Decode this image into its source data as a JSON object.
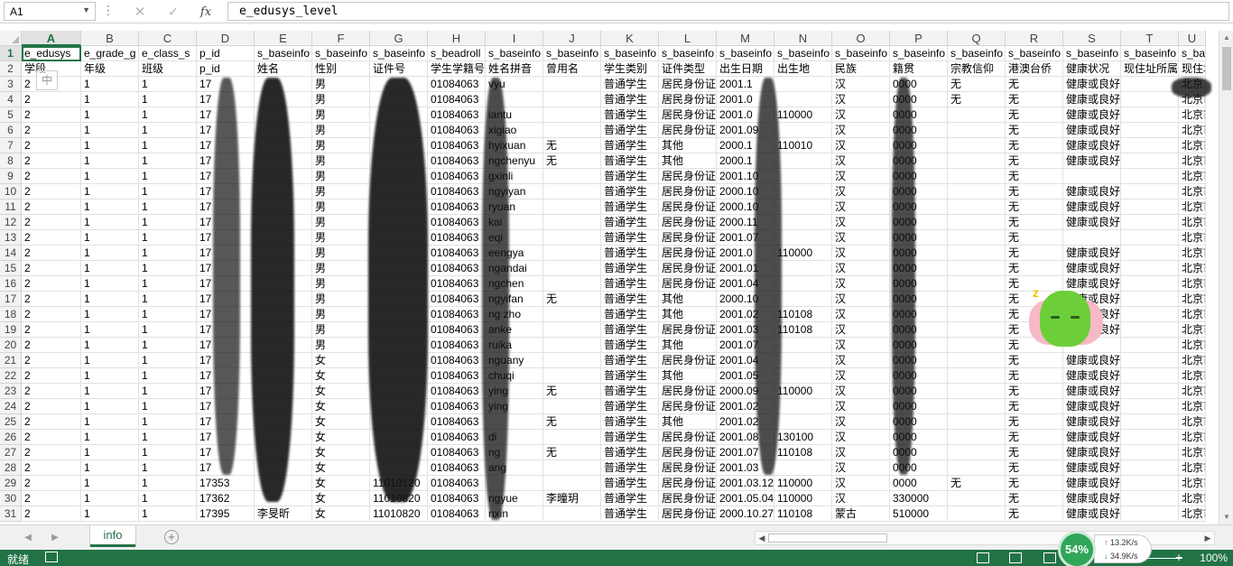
{
  "formula_bar": {
    "name_box": "A1",
    "cancel_glyph": "✕",
    "enter_glyph": "✓",
    "fx_label": "fx",
    "content": "e_edusys_level"
  },
  "columns": [
    "A",
    "B",
    "C",
    "D",
    "E",
    "F",
    "G",
    "H",
    "I",
    "J",
    "K",
    "L",
    "M",
    "N",
    "O",
    "P",
    "Q",
    "R",
    "S",
    "T",
    "U"
  ],
  "rows": [
    {
      "n": "1",
      "cells": [
        "e_edusys",
        "e_grade_g",
        "e_class_s",
        "p_id",
        "s_baseinfo",
        "s_baseinfo",
        "s_baseinfo",
        "s_beadroll",
        "s_baseinfo",
        "s_baseinfo",
        "s_baseinfo",
        "s_baseinfo",
        "s_baseinfo",
        "s_baseinfo",
        "s_baseinfo",
        "s_baseinfo",
        "s_baseinfo",
        "s_baseinfo",
        "s_baseinfo",
        "s_baseinfo",
        "s_bas"
      ]
    },
    {
      "n": "2",
      "cells": [
        "学段",
        "年级",
        "班级",
        "p_id",
        "姓名",
        "性别",
        "证件号",
        "学生学籍号",
        "姓名拼音",
        "曾用名",
        "学生类别",
        "证件类型",
        "出生日期",
        "出生地",
        "民族",
        "籍贯",
        "宗教信仰",
        "港澳台侨",
        "健康状况",
        "现住址所属",
        "现住址"
      ]
    },
    {
      "n": "3",
      "cells": [
        "2",
        "1",
        "1",
        "17",
        "",
        "男",
        "",
        "01084063",
        "vyu",
        "",
        "普通学生",
        "居民身份证",
        "2001.1",
        "",
        "汉",
        "0000",
        "无",
        "无",
        "健康或良好",
        "",
        "北京市"
      ]
    },
    {
      "n": "4",
      "cells": [
        "2",
        "1",
        "1",
        "17",
        "",
        "男",
        "",
        "01084063",
        "",
        "",
        "普通学生",
        "居民身份证",
        "2001.0",
        "",
        "汉",
        "0000",
        "无",
        "无",
        "健康或良好",
        "",
        "北京市"
      ]
    },
    {
      "n": "5",
      "cells": [
        "2",
        "1",
        "1",
        "17",
        "",
        "男",
        "",
        "01084063",
        "iantu",
        "",
        "普通学生",
        "居民身份证",
        "2001.0",
        "110000",
        "汉",
        "0000",
        "",
        "无",
        "健康或良好",
        "",
        "北京市"
      ]
    },
    {
      "n": "6",
      "cells": [
        "2",
        "1",
        "1",
        "17",
        "",
        "男",
        "",
        "01084063",
        "xigiao",
        "",
        "普通学生",
        "居民身份证",
        "2001.09",
        "",
        "汉",
        "0000",
        "",
        "无",
        "健康或良好",
        "",
        "北京市"
      ]
    },
    {
      "n": "7",
      "cells": [
        "2",
        "1",
        "1",
        "17",
        "",
        "男",
        "",
        "01084063",
        "hyixuan",
        "无",
        "普通学生",
        "其他",
        "2000.1",
        "110010",
        "汉",
        "0000",
        "",
        "无",
        "健康或良好",
        "",
        "北京市"
      ]
    },
    {
      "n": "8",
      "cells": [
        "2",
        "1",
        "1",
        "17",
        "",
        "男",
        "",
        "01084063",
        "ngchenyu",
        "无",
        "普通学生",
        "其他",
        "2000.1",
        "",
        "汉",
        "0000",
        "",
        "无",
        "健康或良好",
        "",
        "北京市"
      ]
    },
    {
      "n": "9",
      "cells": [
        "2",
        "1",
        "1",
        "17",
        "",
        "男",
        "",
        "01084063",
        "gxinli",
        "",
        "普通学生",
        "居民身份证",
        "2001.10",
        "",
        "汉",
        "0000",
        "",
        "无",
        "",
        "",
        "北京市"
      ]
    },
    {
      "n": "10",
      "cells": [
        "2",
        "1",
        "1",
        "17",
        "",
        "男",
        "",
        "01084063",
        "ngyiyan",
        "",
        "普通学生",
        "居民身份证",
        "2000.10",
        "",
        "汉",
        "0000",
        "",
        "无",
        "健康或良好",
        "",
        "北京市"
      ]
    },
    {
      "n": "11",
      "cells": [
        "2",
        "1",
        "1",
        "17",
        "",
        "男",
        "",
        "01084063",
        "ryuan",
        "",
        "普通学生",
        "居民身份证",
        "2000.10",
        "",
        "汉",
        "0000",
        "",
        "无",
        "健康或良好",
        "",
        "北京市"
      ]
    },
    {
      "n": "12",
      "cells": [
        "2",
        "1",
        "1",
        "17",
        "",
        "男",
        "",
        "01084063",
        "kai",
        "",
        "普通学生",
        "居民身份证",
        "2000.11",
        "",
        "汉",
        "0000",
        "",
        "无",
        "健康或良好",
        "",
        "北京市"
      ]
    },
    {
      "n": "13",
      "cells": [
        "2",
        "1",
        "1",
        "17",
        "",
        "男",
        "",
        "01084063",
        "eqi",
        "",
        "普通学生",
        "居民身份证",
        "2001.07",
        "",
        "汉",
        "0000",
        "",
        "无",
        "",
        "",
        "北京市"
      ]
    },
    {
      "n": "14",
      "cells": [
        "2",
        "1",
        "1",
        "17",
        "",
        "男",
        "",
        "01084063",
        "eengya",
        "",
        "普通学生",
        "居民身份证",
        "2001.0",
        "110000",
        "汉",
        "0000",
        "",
        "无",
        "健康或良好",
        "",
        "北京市"
      ]
    },
    {
      "n": "15",
      "cells": [
        "2",
        "1",
        "1",
        "17",
        "",
        "男",
        "",
        "01084063",
        "ngandai",
        "",
        "普通学生",
        "居民身份证",
        "2001.01",
        "",
        "汉",
        "0000",
        "",
        "无",
        "健康或良好",
        "",
        "北京市"
      ]
    },
    {
      "n": "16",
      "cells": [
        "2",
        "1",
        "1",
        "17",
        "",
        "男",
        "",
        "01084063",
        "ngchen",
        "",
        "普通学生",
        "居民身份证",
        "2001.04",
        "",
        "汉",
        "0000",
        "",
        "无",
        "健康或良好",
        "",
        "北京市"
      ]
    },
    {
      "n": "17",
      "cells": [
        "2",
        "1",
        "1",
        "17",
        "",
        "男",
        "",
        "01084063",
        "ngyifan",
        "无",
        "普通学生",
        "其他",
        "2000.10",
        "",
        "汉",
        "0000",
        "",
        "无",
        "健康或良好",
        "",
        "北京市"
      ]
    },
    {
      "n": "18",
      "cells": [
        "2",
        "1",
        "1",
        "17",
        "",
        "男",
        "",
        "01084063",
        "ng zho",
        "",
        "普通学生",
        "其他",
        "2001.02",
        "110108",
        "汉",
        "0000",
        "",
        "无",
        "健康或良好",
        "",
        "北京市"
      ]
    },
    {
      "n": "19",
      "cells": [
        "2",
        "1",
        "1",
        "17",
        "",
        "男",
        "",
        "01084063",
        "anke",
        "",
        "普通学生",
        "居民身份证",
        "2001.03",
        "110108",
        "汉",
        "0000",
        "",
        "无",
        "健康或良好",
        "",
        "北京市"
      ]
    },
    {
      "n": "20",
      "cells": [
        "2",
        "1",
        "1",
        "17",
        "",
        "男",
        "",
        "01084063",
        "ruika",
        "",
        "普通学生",
        "其他",
        "2001.07",
        "",
        "汉",
        "0000",
        "",
        "无",
        "",
        "",
        "北京市"
      ]
    },
    {
      "n": "21",
      "cells": [
        "2",
        "1",
        "1",
        "17",
        "",
        "女",
        "",
        "01084063",
        "nguany",
        "",
        "普通学生",
        "居民身份证",
        "2001.04",
        "",
        "汉",
        "0000",
        "",
        "无",
        "健康或良好",
        "",
        "北京市"
      ]
    },
    {
      "n": "22",
      "cells": [
        "2",
        "1",
        "1",
        "17",
        "",
        "女",
        "",
        "01084063",
        "chuqi",
        "",
        "普通学生",
        "其他",
        "2001.05",
        "",
        "汉",
        "0000",
        "",
        "无",
        "健康或良好",
        "",
        "北京市"
      ]
    },
    {
      "n": "23",
      "cells": [
        "2",
        "1",
        "1",
        "17",
        "",
        "女",
        "",
        "01084063",
        "ying",
        "无",
        "普通学生",
        "居民身份证",
        "2000.09",
        "110000",
        "汉",
        "0000",
        "",
        "无",
        "健康或良好",
        "",
        "北京市"
      ]
    },
    {
      "n": "24",
      "cells": [
        "2",
        "1",
        "1",
        "17",
        "",
        "女",
        "",
        "01084063",
        "ying",
        "",
        "普通学生",
        "居民身份证",
        "2001.02",
        "",
        "汉",
        "0000",
        "",
        "无",
        "健康或良好",
        "",
        "北京市"
      ]
    },
    {
      "n": "25",
      "cells": [
        "2",
        "1",
        "1",
        "17",
        "",
        "女",
        "",
        "01084063",
        "",
        "无",
        "普通学生",
        "其他",
        "2001.02",
        "",
        "汉",
        "0000",
        "",
        "无",
        "健康或良好",
        "",
        "北京市"
      ]
    },
    {
      "n": "26",
      "cells": [
        "2",
        "1",
        "1",
        "17",
        "",
        "女",
        "",
        "01084063",
        "di",
        "",
        "普通学生",
        "居民身份证",
        "2001.08",
        "130100",
        "汉",
        "0000",
        "",
        "无",
        "健康或良好",
        "",
        "北京市"
      ]
    },
    {
      "n": "27",
      "cells": [
        "2",
        "1",
        "1",
        "17",
        "",
        "女",
        "",
        "01084063",
        "ng",
        "无",
        "普通学生",
        "居民身份证",
        "2001.07",
        "110108",
        "汉",
        "0000",
        "",
        "无",
        "健康或良好",
        "",
        "北京市"
      ]
    },
    {
      "n": "28",
      "cells": [
        "2",
        "1",
        "1",
        "17",
        "",
        "女",
        "",
        "01084063",
        "ang",
        "",
        "普通学生",
        "居民身份证",
        "2001.03",
        "",
        "汉",
        "0000",
        "",
        "无",
        "健康或良好",
        "",
        "北京市"
      ]
    },
    {
      "n": "29",
      "cells": [
        "2",
        "1",
        "1",
        "17353",
        "",
        "女",
        "11010120",
        "01084063",
        "",
        "",
        "普通学生",
        "居民身份证",
        "2001.03.12",
        "110000",
        "汉",
        "0000",
        "无",
        "无",
        "健康或良好",
        "",
        "北京市"
      ]
    },
    {
      "n": "30",
      "cells": [
        "2",
        "1",
        "1",
        "17362",
        "",
        "女",
        "11010820",
        "01084063",
        "ngyue",
        "李曈玥",
        "普通学生",
        "居民身份证",
        "2001.05.04",
        "110000",
        "汉",
        "330000",
        "",
        "无",
        "健康或良好",
        "",
        "北京市"
      ]
    },
    {
      "n": "31",
      "cells": [
        "2",
        "1",
        "1",
        "17395",
        "李旻昕",
        "女",
        "11010820",
        "01084063",
        "nxin",
        "",
        "普通学生",
        "居民身份证",
        "2000.10.27",
        "110108",
        "蒙古",
        "510000",
        "",
        "无",
        "健康或良好",
        "",
        "北京市"
      ]
    }
  ],
  "sheet_tabs": {
    "active": "info",
    "add_glyph": "+"
  },
  "status_bar": {
    "ready": "就绪",
    "zoom": "100%",
    "plus_glyph": "+"
  },
  "net_widget": {
    "percent": "54%",
    "upload": "13.2K/s",
    "download": "34.9K/s"
  },
  "ime_indicator": "中",
  "colors": {
    "accent": "#217346",
    "header_bg": "#f3f3f3",
    "gridline": "#e1e1e1"
  }
}
